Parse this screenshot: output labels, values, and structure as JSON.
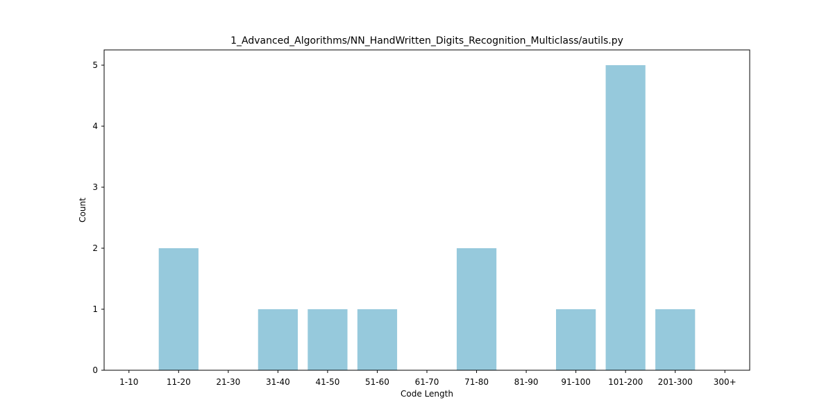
{
  "chart_data": {
    "type": "bar",
    "title": "1_Advanced_Algorithms/NN_HandWritten_Digits_Recognition_Multiclass/autils.py",
    "xlabel": "Code Length",
    "ylabel": "Count",
    "categories": [
      "1-10",
      "11-20",
      "21-30",
      "31-40",
      "41-50",
      "51-60",
      "61-70",
      "71-80",
      "81-90",
      "91-100",
      "101-200",
      "201-300",
      "300+"
    ],
    "values": [
      0,
      2,
      0,
      1,
      1,
      1,
      0,
      2,
      0,
      1,
      5,
      1,
      0
    ],
    "ylim": [
      0,
      5.25
    ],
    "yticks": [
      0,
      1,
      2,
      3,
      4,
      5
    ],
    "bar_color": "#96c9dc",
    "grid": false,
    "legend": false
  }
}
